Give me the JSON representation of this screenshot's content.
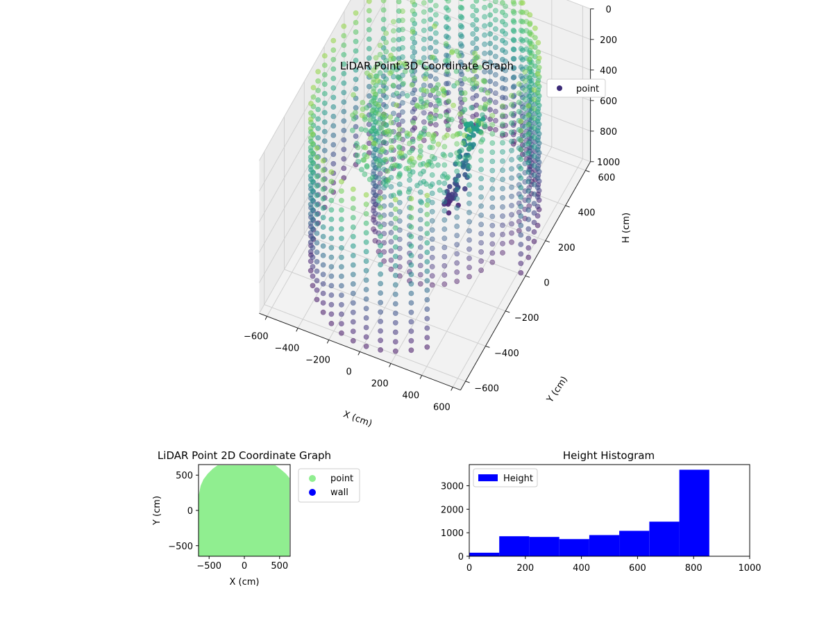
{
  "chart_data": [
    {
      "type": "scatter3d",
      "title": "LiDAR Point 3D Coordinate Graph",
      "xlabel": "X (cm)",
      "ylabel": "Y (cm)",
      "zlabel": "H (cm)",
      "xlim": [
        -650,
        650
      ],
      "ylim": [
        -650,
        650
      ],
      "zlim": [
        1000,
        0
      ],
      "x_ticks": [
        -600,
        -400,
        -200,
        0,
        200,
        400,
        600
      ],
      "y_ticks": [
        -600,
        -400,
        -200,
        0,
        200,
        400,
        600
      ],
      "z_ticks": [
        0,
        200,
        400,
        600,
        800,
        1000
      ],
      "colormap": "viridis",
      "grid": true,
      "legend": {
        "position": "top-right",
        "entries": [
          {
            "label": "point",
            "color": "#3b2a77"
          }
        ]
      },
      "shape": {
        "outer_ring": {
          "center": [
            0,
            0
          ],
          "radius": 620,
          "height_range": [
            0,
            1000
          ],
          "open_sector_deg": [
            -20,
            55
          ]
        },
        "inner_ring": {
          "center": [
            50,
            200
          ],
          "radius": 430,
          "height_range": [
            0,
            1000
          ]
        },
        "center_cluster": {
          "center": [
            0,
            -50
          ],
          "max_height": 800
        }
      }
    },
    {
      "type": "scatter",
      "title": "LiDAR Point 2D Coordinate Graph",
      "xlabel": "X (cm)",
      "ylabel": "Y (cm)",
      "xlim": [
        -650,
        650
      ],
      "ylim": [
        -650,
        650
      ],
      "x_ticks": [
        -500,
        0,
        500
      ],
      "y_ticks": [
        -500,
        0,
        500
      ],
      "legend": {
        "position": "outside-right",
        "entries": [
          {
            "label": "point",
            "color": "#90ee90"
          },
          {
            "label": "wall",
            "color": "#0000ff"
          }
        ]
      },
      "region": {
        "color": "#90ee90",
        "outline": [
          [
            -650,
            -650
          ],
          [
            640,
            -650
          ],
          [
            640,
            460
          ],
          [
            590,
            520
          ],
          [
            520,
            580
          ],
          [
            440,
            640
          ],
          [
            -380,
            640
          ],
          [
            -450,
            590
          ],
          [
            -520,
            520
          ],
          [
            -580,
            440
          ],
          [
            -620,
            350
          ],
          [
            -650,
            200
          ]
        ]
      }
    },
    {
      "type": "bar",
      "title": "Height Histogram",
      "xlabel": "",
      "ylabel": "",
      "xlim": [
        0,
        1000
      ],
      "ylim": [
        0,
        3900
      ],
      "x_ticks": [
        0,
        200,
        400,
        600,
        800,
        1000
      ],
      "y_ticks": [
        0,
        1000,
        2000,
        3000
      ],
      "bar_color": "#0000ff",
      "legend": {
        "position": "top-left",
        "entries": [
          {
            "label": "Height",
            "color": "#0000ff"
          }
        ]
      },
      "bin_edges": [
        0,
        107,
        214,
        321,
        428,
        535,
        642,
        749,
        856
      ],
      "counts": [
        150,
        850,
        820,
        730,
        900,
        1080,
        1470,
        3680
      ]
    }
  ]
}
